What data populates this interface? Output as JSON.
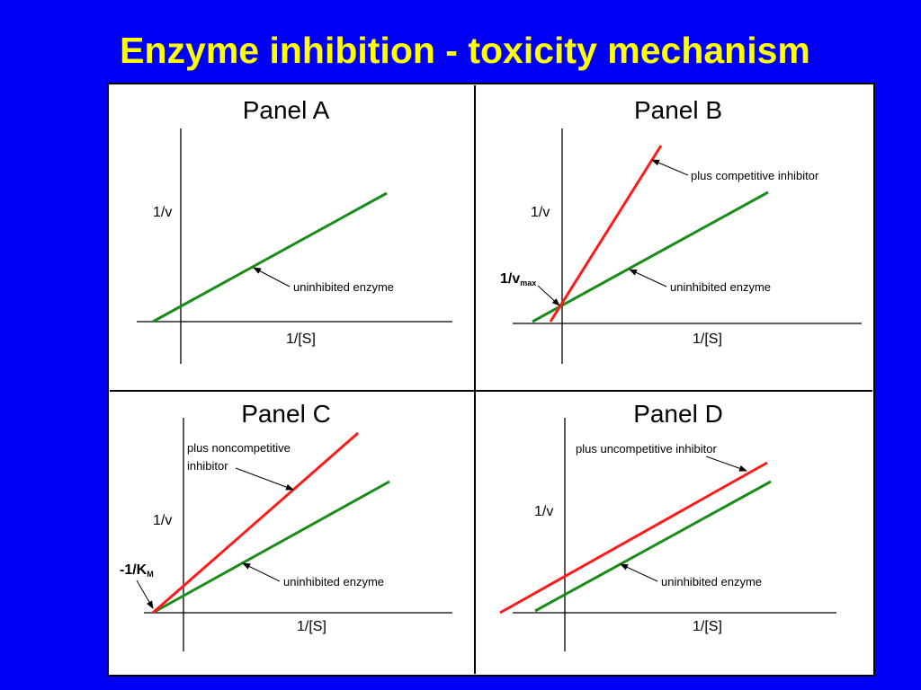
{
  "title": "Enzyme inhibition - toxicity mechanism",
  "panels": [
    {
      "title": "Panel A",
      "y_label": "1/v",
      "x_label": "1/[S]",
      "labels": [
        "uninhibited enzyme"
      ]
    },
    {
      "title": "Panel B",
      "y_label": "1/v",
      "x_label": "1/[S]",
      "labels": [
        "plus competitive inhibitor",
        "uninhibited enzyme"
      ],
      "intercept": {
        "text": "1/v",
        "sub": "max"
      }
    },
    {
      "title": "Panel C",
      "y_label": "1/v",
      "x_label": "1/[S]",
      "labels": [
        "plus noncompetitive",
        "inhibitor",
        "uninhibited enzyme"
      ],
      "intercept": {
        "text": "-1/K",
        "sub": "M"
      }
    },
    {
      "title": "Panel D",
      "y_label": "1/v",
      "x_label": "1/[S]",
      "labels": [
        "plus uncompetitive inhibitor",
        "uninhibited enzyme"
      ]
    }
  ]
}
